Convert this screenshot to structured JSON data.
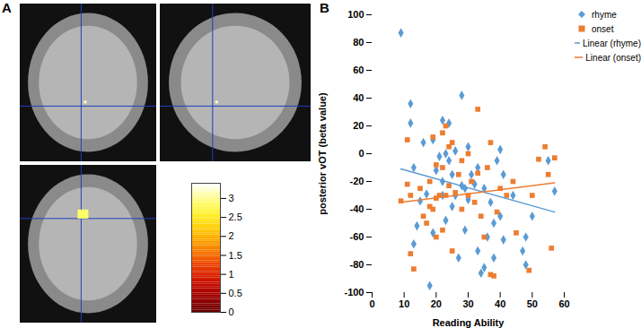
{
  "chart_data": [
    {
      "type": "image",
      "panel": "A",
      "colorbar": {
        "range": [
          0,
          3.4
        ],
        "ticks": [
          0,
          0.5,
          1,
          1.5,
          2,
          2.5,
          3
        ]
      }
    },
    {
      "type": "scatter",
      "panel": "B",
      "x_label": "Reading Ability",
      "y_label": "posterior vOT (beta value)",
      "xlim": [
        0,
        60
      ],
      "xticks": [
        0,
        10,
        20,
        30,
        40,
        50,
        60
      ],
      "ylim": [
        -100,
        100
      ],
      "yticks": [
        -100,
        -80,
        -60,
        -40,
        -20,
        0,
        20,
        40,
        60,
        80,
        100
      ],
      "legend": "right",
      "series": [
        {
          "name": "rhyme",
          "color": "#5b9bd5",
          "marker": "diamond",
          "x": [
            9,
            12,
            12,
            13,
            14,
            13,
            15,
            16,
            17,
            18,
            19,
            19,
            20,
            21,
            22,
            22,
            22,
            23,
            23,
            24,
            24,
            25,
            25,
            26,
            26,
            27,
            28,
            28,
            29,
            29,
            30,
            30,
            31,
            32,
            33,
            33,
            34,
            35,
            36,
            37,
            38,
            38,
            39,
            40,
            40,
            41,
            44,
            47,
            48,
            48,
            50,
            55,
            57,
            35,
            41
          ],
          "values": [
            87,
            36,
            22,
            -10,
            -52,
            -65,
            -34,
            8,
            -29,
            -95,
            -57,
            10,
            -12,
            -2,
            24,
            -20,
            -30,
            0,
            -48,
            -5,
            22,
            -15,
            -38,
            -30,
            2,
            -75,
            42,
            -23,
            -25,
            -55,
            -33,
            5,
            -15,
            -22,
            -10,
            -70,
            -86,
            -25,
            -60,
            -35,
            -50,
            -75,
            -5,
            3,
            -45,
            -15,
            -30,
            -70,
            -60,
            -80,
            -45,
            -5,
            -27,
            -82,
            -62
          ]
        },
        {
          "name": "onset",
          "color": "#ed7d31",
          "marker": "square",
          "x": [
            9,
            11,
            11,
            12,
            12,
            13,
            15,
            16,
            17,
            18,
            18,
            19,
            19,
            20,
            20,
            20,
            21,
            22,
            22,
            22,
            23,
            23,
            24,
            24,
            25,
            25,
            26,
            27,
            28,
            28,
            30,
            30,
            31,
            32,
            33,
            33,
            34,
            35,
            36,
            37,
            37,
            38,
            39,
            40,
            42,
            44,
            45,
            49,
            50,
            54,
            55,
            52,
            57,
            56
          ],
          "values": [
            -34,
            10,
            -22,
            -30,
            -72,
            -83,
            -25,
            -45,
            -50,
            -38,
            -20,
            12,
            -40,
            -8,
            -32,
            -60,
            -30,
            15,
            -10,
            -55,
            20,
            -30,
            5,
            -23,
            8,
            -70,
            -28,
            -15,
            -40,
            -5,
            0,
            -30,
            -20,
            -35,
            32,
            -14,
            -45,
            -60,
            -10,
            -87,
            8,
            -88,
            -42,
            -25,
            -30,
            -20,
            -57,
            -84,
            -30,
            5,
            -15,
            -4,
            -3,
            -68
          ]
        },
        {
          "name": "Linear (rhyme)",
          "type": "line",
          "color": "#5b9bd5",
          "x": [
            9,
            57
          ],
          "values": [
            -11,
            -42
          ]
        },
        {
          "name": "Linear (onset)",
          "type": "line",
          "color": "#ed7d31",
          "x": [
            9,
            57
          ],
          "values": [
            -35,
            -21
          ]
        }
      ]
    }
  ]
}
